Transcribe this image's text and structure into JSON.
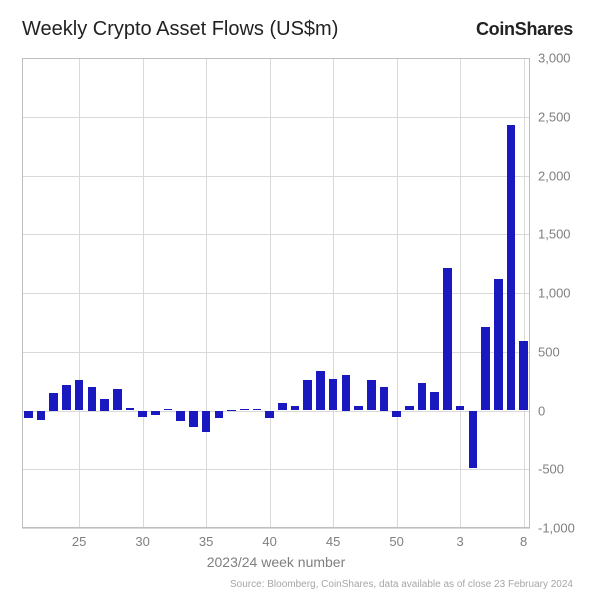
{
  "title": "Weekly Crypto Asset Flows (US$m)",
  "brand_text": "CoinShares",
  "source": "Source: Bloomberg, CoinShares, data available as of close 23 February 2024",
  "x_axis_title": "2023/24 week number",
  "chart": {
    "type": "bar",
    "bar_color": "#1919bf",
    "background_color": "#ffffff",
    "grid_color": "#d9d9d9",
    "border_color": "#bfbfbf",
    "tick_label_color": "#7f7f7f",
    "title_fontsize": 20,
    "tick_fontsize": 13,
    "ylim": [
      -1000,
      3000
    ],
    "y_ticks": [
      -1000,
      -500,
      0,
      500,
      1000,
      1500,
      2000,
      2500,
      3000
    ],
    "x_tick_positions": [
      4,
      9,
      14,
      19,
      24,
      29,
      34,
      39
    ],
    "x_tick_labels": [
      "25",
      "30",
      "35",
      "40",
      "45",
      "50",
      "3",
      "8"
    ],
    "x_grid_positions": [
      4,
      9,
      14,
      19,
      24,
      29,
      34,
      39
    ],
    "bar_width": 0.68,
    "values": [
      -60,
      -85,
      150,
      220,
      260,
      200,
      100,
      180,
      20,
      -55,
      -35,
      10,
      -90,
      -140,
      -180,
      -60,
      8,
      15,
      10,
      -60,
      60,
      35,
      260,
      340,
      270,
      300,
      35,
      260,
      200,
      -55,
      40,
      230,
      160,
      1210,
      40,
      -490,
      710,
      1120,
      2430,
      590
    ]
  }
}
